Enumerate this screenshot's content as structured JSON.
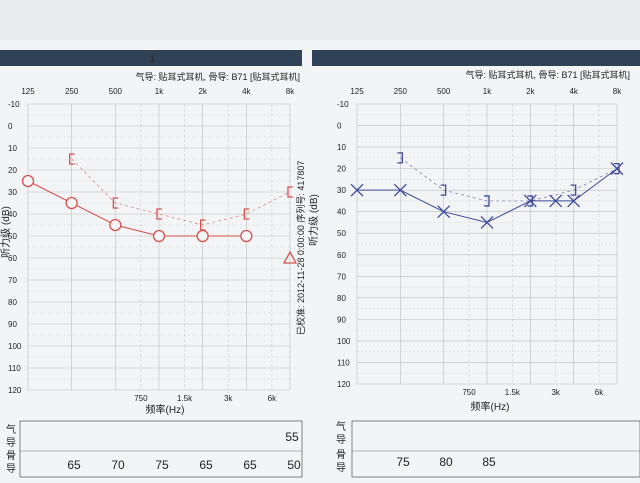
{
  "colors": {
    "paper": "#f3f4f5",
    "bar": "#2f4258",
    "grid": "#b9bdc3",
    "right_ear": "#d4534f",
    "left_ear": "#3d4a98"
  },
  "left_panel": {
    "bar_label": "1",
    "header": "气导: 贴耳式耳机, 骨导: B71 [贴耳式耳机]",
    "ylabel": "听力级 (dB)",
    "xlabel": "频率(Hz)",
    "side_text": "已校准: 2012-11-28 0:00:00 序列号: 417807"
  },
  "right_panel": {
    "header": "气导: 贴耳式耳机, 骨导: B71 [贴耳式耳机]",
    "ylabel": "听力级 (dB)",
    "xlabel": "频率(Hz)"
  },
  "table": {
    "air_label": "气导",
    "bone_label": "骨导",
    "left_air": [
      "",
      "",
      "",
      "",
      "",
      "55"
    ],
    "left_bone": [
      "65",
      "70",
      "75",
      "65",
      "65",
      "50"
    ],
    "right_air": [
      "",
      "",
      "",
      "",
      "",
      ""
    ],
    "right_bone": [
      "75",
      "80",
      "85",
      "",
      "",
      ""
    ]
  },
  "chart_data": [
    {
      "type": "line",
      "x_top_ticks": [
        "125",
        "250",
        "500",
        "1k",
        "2k",
        "4k",
        "8k"
      ],
      "x_bottom_ticks": [
        "750",
        "1.5k",
        "3k",
        "6k"
      ],
      "y_ticks": [
        "-10",
        "0",
        "10",
        "20",
        "30",
        "40",
        "50",
        "60",
        "70",
        "80",
        "90",
        "100",
        "110",
        "120"
      ],
      "ylim": [
        -10,
        120
      ],
      "y_inverted": true,
      "xscale": "log",
      "series": [
        {
          "marker": "circle",
          "color": "#d4534f",
          "style": "solid",
          "x": [
            125,
            250,
            500,
            1000,
            2000,
            4000
          ],
          "y": [
            25,
            35,
            45,
            50,
            50,
            50
          ]
        },
        {
          "marker": "triangle",
          "color": "#d4534f",
          "style": "solid",
          "x": [
            8000
          ],
          "y": [
            60
          ]
        },
        {
          "marker": "bracket-left",
          "color": "#d4534f",
          "style": "dashed",
          "x": [
            250,
            500,
            1000,
            2000,
            4000,
            8000
          ],
          "y": [
            15,
            35,
            40,
            45,
            40,
            30
          ]
        }
      ]
    },
    {
      "type": "line",
      "x_top_ticks": [
        "125",
        "250",
        "500",
        "1k",
        "2k",
        "4k",
        "8k"
      ],
      "x_bottom_ticks": [
        "750",
        "1.5k",
        "3k",
        "6k"
      ],
      "y_ticks": [
        "-10",
        "0",
        "10",
        "20",
        "30",
        "40",
        "50",
        "60",
        "70",
        "80",
        "90",
        "100",
        "110",
        "120"
      ],
      "ylim": [
        -10,
        120
      ],
      "y_inverted": true,
      "xscale": "log",
      "series": [
        {
          "marker": "x",
          "color": "#3d4a98",
          "style": "solid",
          "x": [
            125,
            250,
            500,
            1000,
            2000,
            3000,
            4000,
            8000
          ],
          "y": [
            30,
            30,
            40,
            45,
            35,
            35,
            35,
            20
          ]
        },
        {
          "marker": "bracket-right",
          "color": "#3d4a98",
          "style": "dashed",
          "x": [
            250,
            500,
            1000,
            2000,
            4000,
            8000
          ],
          "y": [
            15,
            30,
            35,
            35,
            30,
            20
          ]
        }
      ]
    }
  ]
}
